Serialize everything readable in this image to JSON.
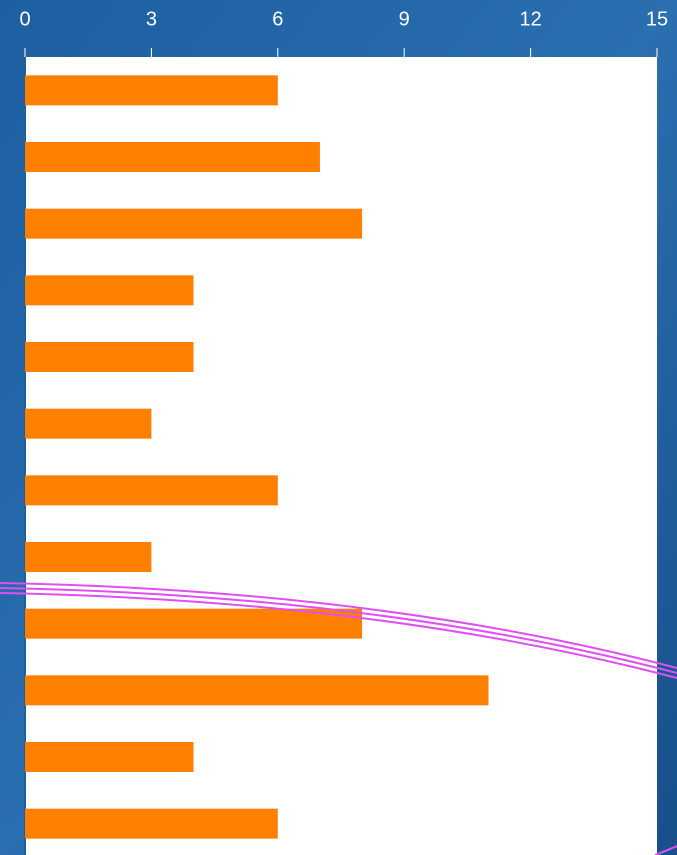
{
  "chart_data": {
    "type": "bar",
    "orientation": "horizontal",
    "categories": [
      null,
      null,
      null,
      null,
      null,
      null,
      null,
      null,
      null,
      null,
      null,
      null
    ],
    "values": [
      6,
      7,
      8,
      4,
      4,
      3,
      6,
      3,
      8,
      11,
      4,
      6
    ],
    "color": "#ff7f00",
    "xlim": [
      0,
      15
    ],
    "xticks": [
      0,
      3,
      6,
      9,
      12,
      15
    ],
    "grid": false
  }
}
